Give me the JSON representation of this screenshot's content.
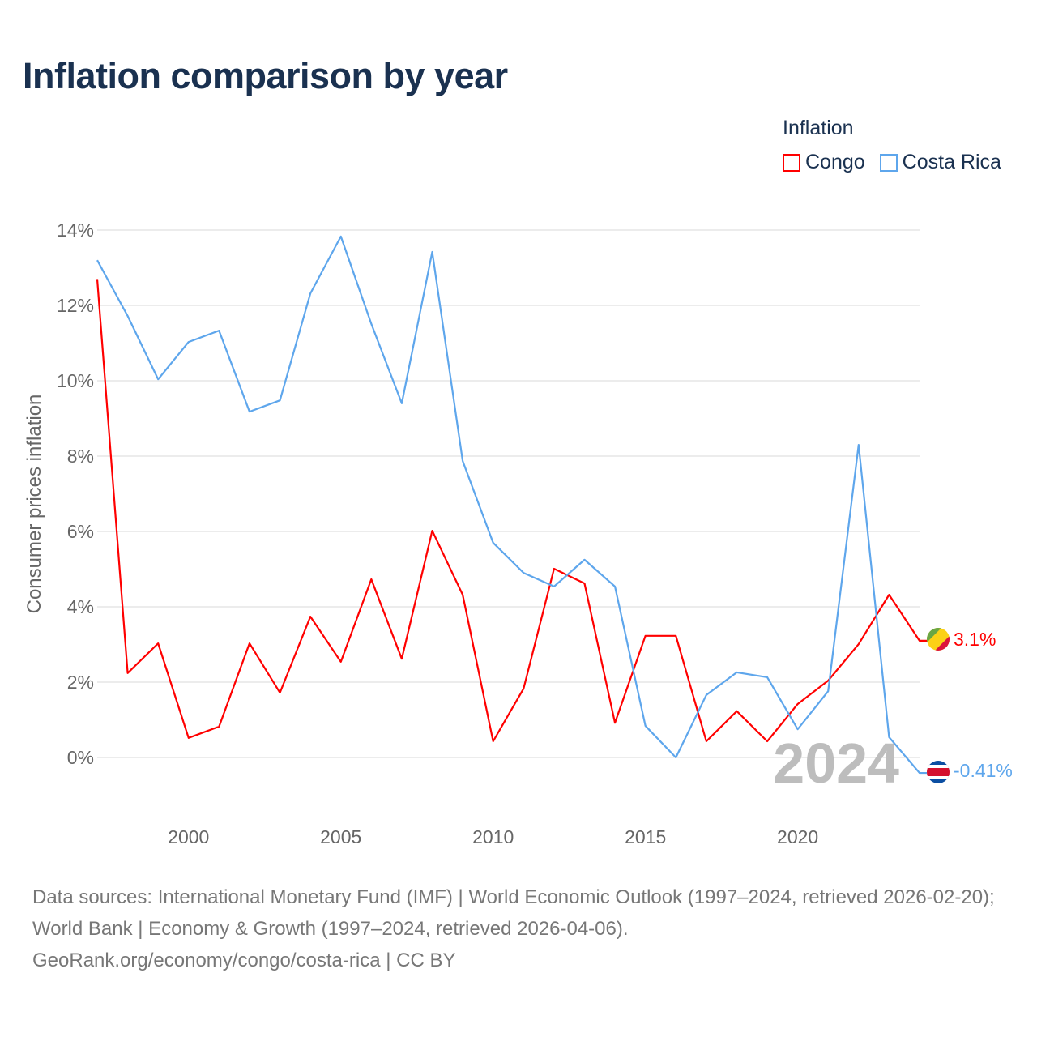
{
  "title": "Inflation comparison by year",
  "legend": {
    "title": "Inflation",
    "items": [
      {
        "name": "Congo",
        "color": "#ff0000"
      },
      {
        "name": "Costa Rica",
        "color": "#5ea6ec"
      }
    ]
  },
  "source_lines": [
    "Data sources: International Monetary Fund (IMF) | World Economic Outlook (1997–2024, retrieved 2026-02-20); World Bank | Economy & Growth (1997–2024, retrieved 2026-04-06).",
    "GeoRank.org/economy/congo/costa-rica | CC BY"
  ],
  "chart_data": {
    "type": "line",
    "title": "Inflation comparison by year",
    "xlabel": "",
    "ylabel": "Consumer prices inflation",
    "xlim": [
      1997,
      2024
    ],
    "ylim": [
      -1.3,
      14.4
    ],
    "yticks": [
      0,
      2,
      4,
      6,
      8,
      10,
      12,
      14
    ],
    "ytick_labels": [
      "0%",
      "2%",
      "4%",
      "6%",
      "8%",
      "10%",
      "12%",
      "14%"
    ],
    "xticks": [
      2000,
      2005,
      2010,
      2015,
      2020
    ],
    "xtick_labels": [
      "2000",
      "2005",
      "2010",
      "2015",
      "2020"
    ],
    "grid": true,
    "legend_position": "top-right",
    "year_watermark": "2024",
    "x": [
      1997,
      1998,
      1999,
      2000,
      2001,
      2002,
      2003,
      2004,
      2005,
      2006,
      2007,
      2008,
      2009,
      2010,
      2011,
      2012,
      2013,
      2014,
      2015,
      2016,
      2017,
      2018,
      2019,
      2020,
      2021,
      2022,
      2023,
      2024
    ],
    "series": [
      {
        "name": "Congo",
        "color": "#ff0000",
        "end_label": "3.1%",
        "values": [
          12.7,
          2.24,
          3.03,
          0.52,
          0.82,
          3.03,
          1.72,
          3.74,
          2.54,
          4.73,
          2.62,
          6.02,
          4.32,
          0.43,
          1.83,
          5.01,
          4.62,
          0.92,
          3.23,
          3.23,
          0.43,
          1.23,
          0.43,
          1.42,
          2.04,
          3.01,
          4.32,
          3.1
        ]
      },
      {
        "name": "Costa Rica",
        "color": "#5ea6ec",
        "end_label": "-0.41%",
        "values": [
          13.2,
          11.72,
          10.04,
          11.03,
          11.33,
          9.18,
          9.48,
          12.32,
          13.83,
          11.51,
          9.4,
          13.42,
          7.87,
          5.7,
          4.9,
          4.54,
          5.25,
          4.54,
          0.84,
          0.0,
          1.66,
          2.26,
          2.13,
          0.75,
          1.76,
          8.3,
          0.54,
          -0.41
        ]
      }
    ]
  }
}
